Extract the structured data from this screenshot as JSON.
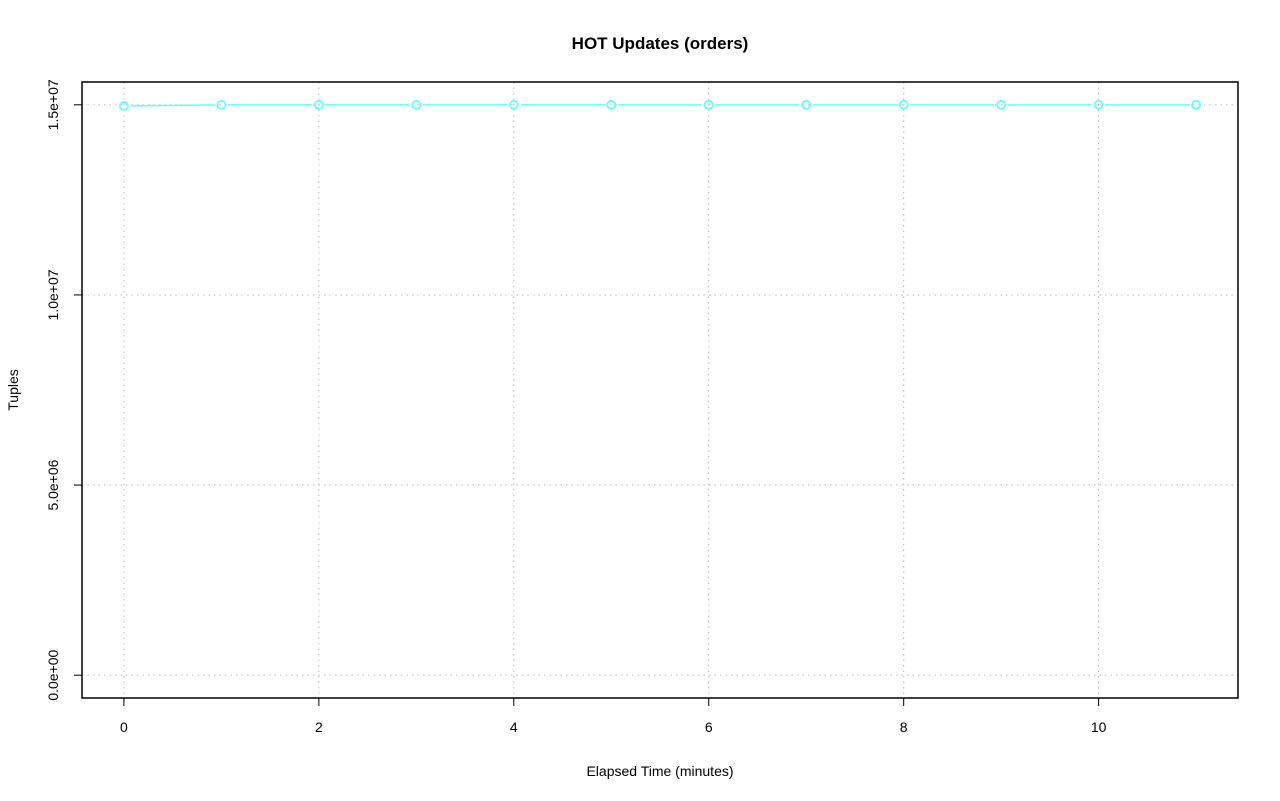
{
  "chart_data": {
    "type": "line",
    "title": "HOT Updates (orders)",
    "xlabel": "Elapsed Time (minutes)",
    "ylabel": "Tuples",
    "x": [
      0,
      1,
      2,
      3,
      4,
      5,
      6,
      7,
      8,
      9,
      10,
      11
    ],
    "series": [
      {
        "values": [
          14970000,
          15000000,
          15000000,
          15000000,
          15000000,
          15000000,
          15000000,
          15000000,
          15000000,
          15000000,
          15000000,
          15000000
        ],
        "color": "#66ffff"
      }
    ],
    "xticks": [
      0,
      2,
      4,
      6,
      8,
      10
    ],
    "xtick_labels": [
      "0",
      "2",
      "4",
      "6",
      "8",
      "10"
    ],
    "yticks": [
      0,
      5000000,
      10000000,
      15000000
    ],
    "ytick_labels": [
      "0.0e+00",
      "5.0e+06",
      "1.0e+07",
      "1.5e+07"
    ],
    "xlim": [
      -0.43,
      11.43
    ],
    "ylim": [
      -600000,
      15600000
    ],
    "grid": true,
    "grid_color": "#bbbbbb"
  }
}
